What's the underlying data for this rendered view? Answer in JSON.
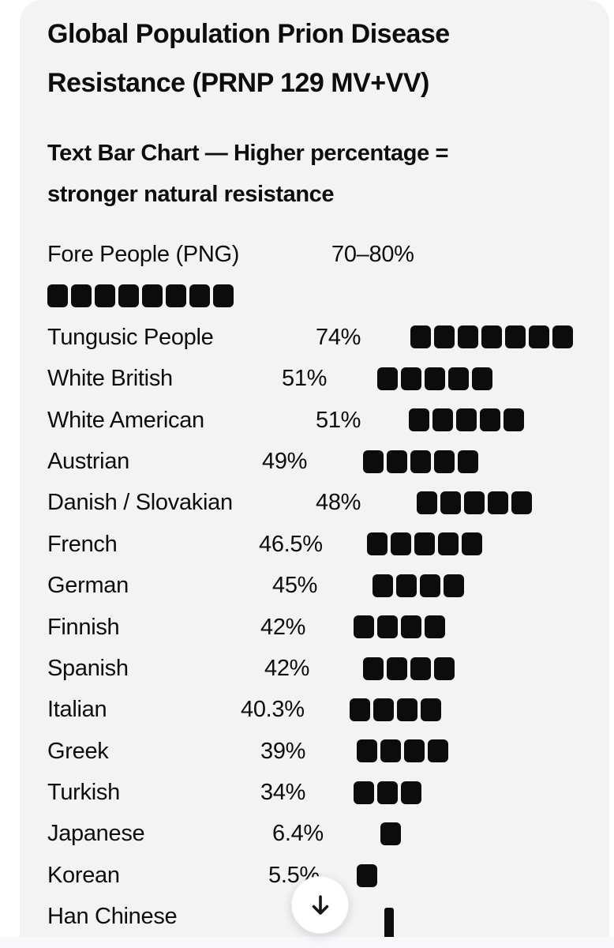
{
  "colors": {
    "page_background": "#ffffff",
    "card_background": "#f3f3f4",
    "text": "#0d0d0d",
    "bar_square": "#0c0c0c",
    "scroll_button_background": "#ffffff"
  },
  "header": {
    "title_lines": [
      "Global Population Prion Disease",
      "Resistance (PRNP 129 MV+VV)"
    ],
    "subtitle_lines": [
      "Text Bar Chart — Higher percentage =",
      "stronger natural resistance"
    ]
  },
  "scroll_button": {
    "icon": "arrow-down"
  },
  "chart_data": {
    "type": "bar",
    "title": "Global Population Prion Disease Resistance (PRNP 129 MV+VV)",
    "subtitle": "Text Bar Chart — Higher percentage = stronger natural resistance",
    "bar_glyph": "black-rounded-square",
    "scale": "1 square ≈ 10 percentage points",
    "rows": [
      {
        "label": "Fore People (PNG)",
        "percent": "70–80%",
        "value_min": 70,
        "value_max": 80,
        "squares": 8
      },
      {
        "label": "Tungusic People",
        "percent": "74%",
        "value": 74,
        "squares": 7
      },
      {
        "label": "White British",
        "percent": "51%",
        "value": 51,
        "squares": 5
      },
      {
        "label": "White American",
        "percent": "51%",
        "value": 51,
        "squares": 5
      },
      {
        "label": "Austrian",
        "percent": "49%",
        "value": 49,
        "squares": 5
      },
      {
        "label": "Danish / Slovakian",
        "percent": "48%",
        "value": 48,
        "squares": 5
      },
      {
        "label": "French",
        "percent": "46.5%",
        "value": 46.5,
        "squares": 5
      },
      {
        "label": "German",
        "percent": "45%",
        "value": 45,
        "squares": 4
      },
      {
        "label": "Finnish",
        "percent": "42%",
        "value": 42,
        "squares": 4
      },
      {
        "label": "Spanish",
        "percent": "42%",
        "value": 42,
        "squares": 4
      },
      {
        "label": "Italian",
        "percent": "40.3%",
        "value": 40.3,
        "squares": 4
      },
      {
        "label": "Greek",
        "percent": "39%",
        "value": 39,
        "squares": 4
      },
      {
        "label": "Turkish",
        "percent": "34%",
        "value": 34,
        "squares": 3
      },
      {
        "label": "Japanese",
        "percent": "6.4%",
        "value": 6.4,
        "squares": 1
      },
      {
        "label": "Korean",
        "percent": "5.5%",
        "value": 5.5,
        "squares": 1
      },
      {
        "label": "Han Chinese",
        "percent": "",
        "squares": 0,
        "thin_bar": true
      }
    ]
  }
}
